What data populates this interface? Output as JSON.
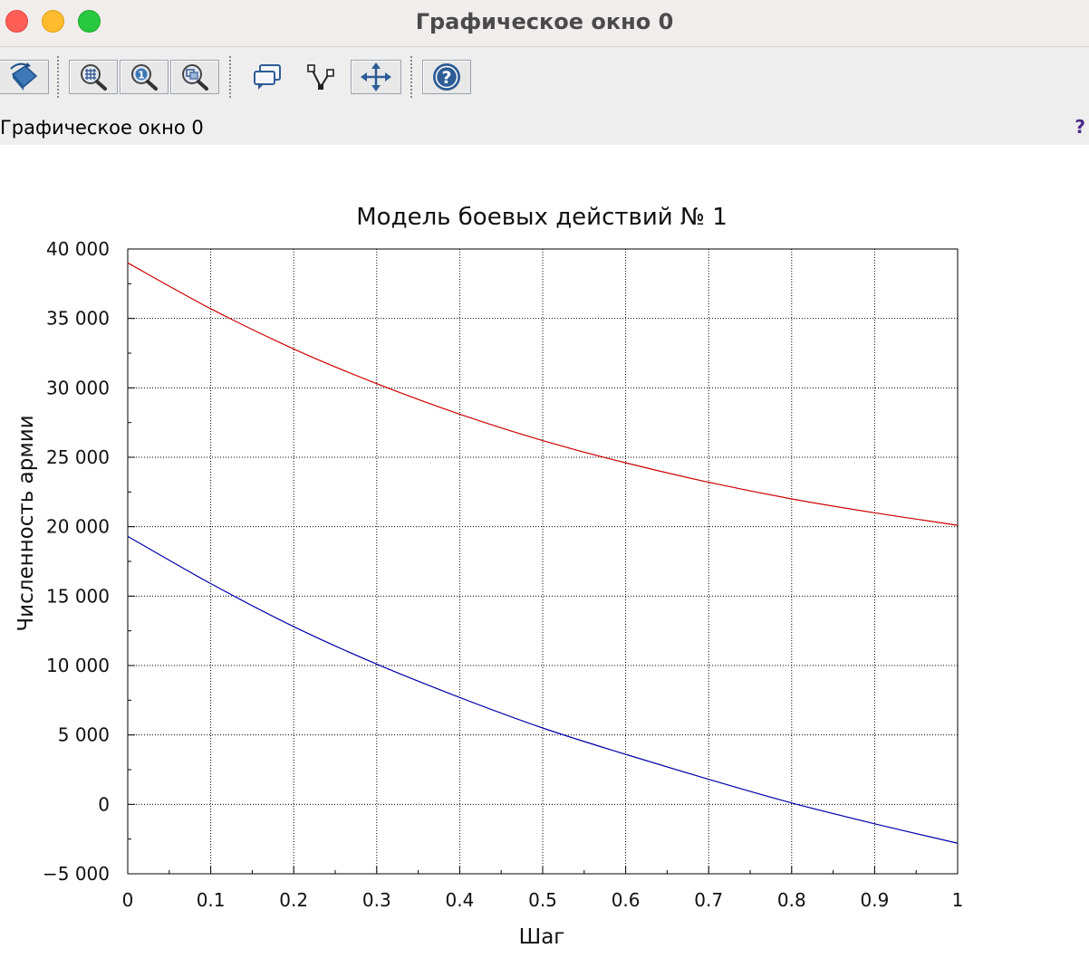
{
  "window": {
    "title": "Графическое окно 0"
  },
  "toolbar": {
    "buttons": [
      {
        "name": "rotate",
        "icon": "rotate-icon"
      },
      {
        "name": "zoom-grid",
        "icon": "zoom-grid-icon"
      },
      {
        "name": "zoom-reset",
        "icon": "zoom-one-icon"
      },
      {
        "name": "zoom-area",
        "icon": "zoom-area-icon"
      },
      {
        "name": "datatip",
        "icon": "datatip-icon"
      },
      {
        "name": "edit-curve",
        "icon": "curve-edit-icon"
      },
      {
        "name": "pan",
        "icon": "pan-arrows-icon"
      },
      {
        "name": "help",
        "icon": "help-icon"
      }
    ]
  },
  "infobar": {
    "label": "Графическое окно 0",
    "help": "?"
  },
  "chart_data": {
    "type": "line",
    "title": "Модель боевых действий № 1",
    "xlabel": "Шаг",
    "ylabel": "Численность армии",
    "xlim": [
      0,
      1
    ],
    "ylim": [
      -5000,
      40000
    ],
    "grid": true,
    "x_ticks": [
      "0",
      "0.1",
      "0.2",
      "0.3",
      "0.4",
      "0.5",
      "0.6",
      "0.7",
      "0.8",
      "0.9",
      "1"
    ],
    "y_ticks": [
      "−5 000",
      "0",
      "5 000",
      "10 000",
      "15 000",
      "20 000",
      "25 000",
      "30 000",
      "35 000",
      "40 000"
    ],
    "x": [
      0,
      0.1,
      0.2,
      0.3,
      0.4,
      0.5,
      0.6,
      0.7,
      0.8,
      0.9,
      1.0
    ],
    "series": [
      {
        "color": "#cc0000",
        "values": [
          39000,
          35700,
          32800,
          30300,
          28100,
          26200,
          24600,
          23200,
          22000,
          21000,
          20100
        ]
      },
      {
        "color": "#0000aa",
        "values": [
          19300,
          15900,
          12800,
          10100,
          7700,
          5500,
          3600,
          1800,
          100,
          -1400,
          -2800
        ]
      }
    ]
  }
}
